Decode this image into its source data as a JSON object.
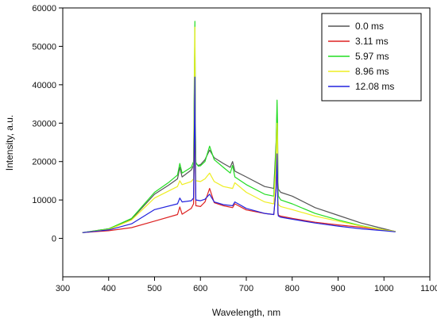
{
  "chart_data": {
    "type": "line",
    "title": "",
    "xlabel": "Wavelength, nm",
    "ylabel": "Intensity, a.u.",
    "xlim": [
      300,
      1100
    ],
    "ylim": [
      -10000,
      60000
    ],
    "xticks": [
      300,
      400,
      500,
      600,
      700,
      800,
      900,
      1000,
      1100
    ],
    "yticks": [
      0,
      10000,
      20000,
      30000,
      40000,
      50000,
      60000
    ],
    "grid": false,
    "legend_position": "top-right",
    "series": [
      {
        "name": "0.0 ms",
        "color": "#555555",
        "x": [
          343,
          400,
          450,
          500,
          530,
          550,
          555,
          560,
          580,
          585,
          587,
          588,
          589,
          590,
          595,
          600,
          610,
          620,
          630,
          650,
          665,
          670,
          675,
          700,
          740,
          760,
          765,
          767,
          768,
          769,
          770,
          775,
          800,
          850,
          900,
          950,
          1000,
          1025
        ],
        "y": [
          1500,
          2500,
          5000,
          11500,
          13800,
          15500,
          18500,
          16000,
          17800,
          19000,
          40000,
          52000,
          27000,
          19500,
          19000,
          19200,
          20500,
          23000,
          21000,
          19500,
          18500,
          20000,
          17500,
          16000,
          13500,
          13000,
          25000,
          33000,
          28000,
          15000,
          12800,
          12000,
          11000,
          8000,
          6000,
          4000,
          2500,
          1800
        ]
      },
      {
        "name": "3.11 ms",
        "color": "#dd2222",
        "x": [
          343,
          400,
          450,
          500,
          550,
          555,
          560,
          580,
          585,
          587,
          588,
          589,
          590,
          600,
          610,
          620,
          630,
          650,
          670,
          675,
          700,
          740,
          760,
          765,
          767,
          768,
          769,
          770,
          775,
          800,
          850,
          900,
          950,
          1000,
          1025
        ],
        "y": [
          1500,
          2000,
          2800,
          4500,
          6200,
          8200,
          6300,
          7800,
          9000,
          25000,
          34000,
          18000,
          8500,
          8300,
          9500,
          13000,
          9300,
          8500,
          8000,
          9000,
          7400,
          6500,
          6200,
          13000,
          21000,
          15000,
          7000,
          6000,
          5800,
          5200,
          4200,
          3500,
          2900,
          2200,
          1800
        ]
      },
      {
        "name": "5.97 ms",
        "color": "#22dd22",
        "x": [
          343,
          400,
          450,
          500,
          530,
          550,
          555,
          560,
          580,
          585,
          587,
          588,
          589,
          590,
          595,
          600,
          610,
          620,
          630,
          650,
          665,
          670,
          675,
          700,
          740,
          760,
          765,
          767,
          768,
          769,
          770,
          775,
          800,
          850,
          900,
          950,
          1000,
          1025
        ],
        "y": [
          1500,
          2500,
          5200,
          12000,
          14500,
          16500,
          19500,
          17000,
          18500,
          20000,
          45000,
          56500,
          30000,
          19800,
          18800,
          18900,
          20000,
          24000,
          20500,
          18500,
          17000,
          19000,
          16000,
          14000,
          11500,
          11000,
          24000,
          36000,
          30000,
          14000,
          11000,
          10000,
          9000,
          6500,
          4800,
          3300,
          2200,
          1800
        ]
      },
      {
        "name": "8.96 ms",
        "color": "#eeee22",
        "x": [
          343,
          400,
          450,
          500,
          550,
          555,
          560,
          580,
          585,
          587,
          588,
          589,
          590,
          600,
          610,
          620,
          630,
          650,
          670,
          675,
          700,
          740,
          760,
          765,
          767,
          768,
          769,
          770,
          775,
          800,
          850,
          900,
          950,
          1000,
          1025
        ],
        "y": [
          1500,
          2300,
          4800,
          10500,
          13500,
          15000,
          14000,
          14800,
          15500,
          40000,
          55000,
          26000,
          15000,
          14800,
          15500,
          17000,
          14800,
          13500,
          13000,
          14500,
          12000,
          9500,
          9000,
          20000,
          30000,
          24000,
          10000,
          8800,
          8300,
          7500,
          5800,
          4500,
          3200,
          2200,
          1800
        ]
      },
      {
        "name": "12.08 ms",
        "color": "#2222dd",
        "x": [
          343,
          400,
          450,
          500,
          550,
          555,
          560,
          580,
          585,
          587,
          588,
          589,
          590,
          600,
          610,
          620,
          630,
          650,
          670,
          675,
          700,
          740,
          760,
          765,
          767,
          768,
          769,
          770,
          775,
          800,
          850,
          900,
          950,
          1000,
          1025
        ],
        "y": [
          1500,
          2200,
          3800,
          7500,
          9000,
          10500,
          9500,
          9800,
          10500,
          30000,
          42000,
          20000,
          10000,
          9800,
          10200,
          11500,
          9500,
          8800,
          8500,
          9500,
          7800,
          6500,
          6200,
          13000,
          22000,
          16000,
          6500,
          5800,
          5500,
          5000,
          4000,
          3200,
          2500,
          2000,
          1700
        ]
      }
    ]
  }
}
